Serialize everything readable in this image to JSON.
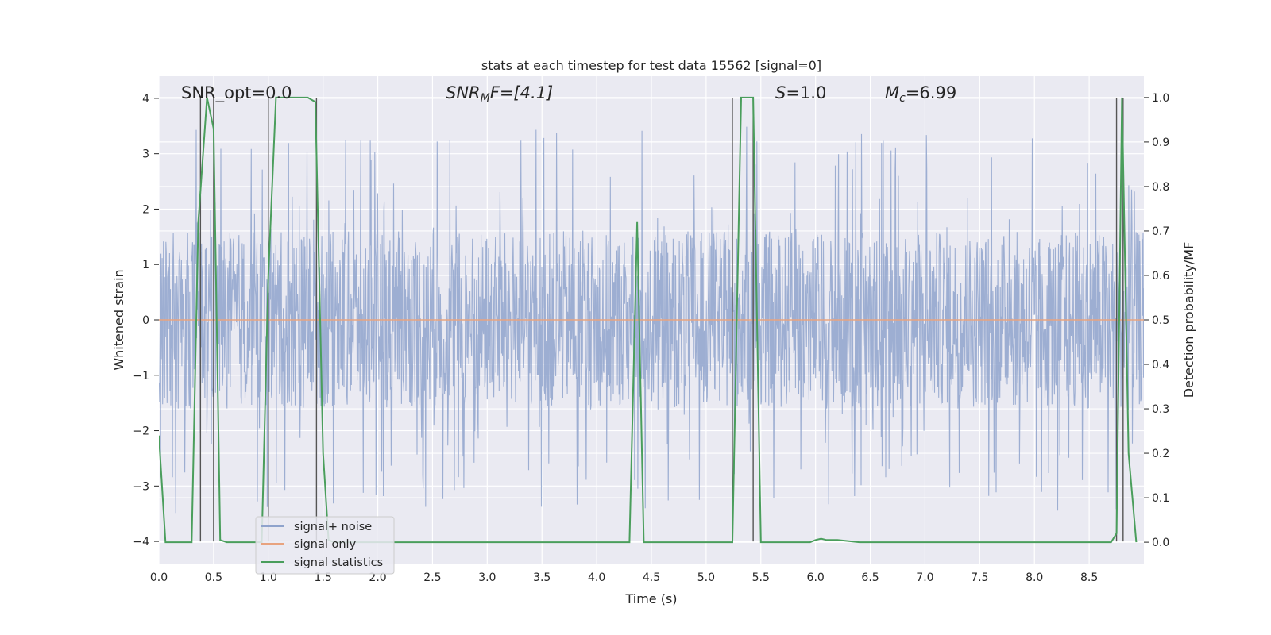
{
  "chart_data": {
    "type": "line",
    "title": "stats at each timestep for test data 15562 [signal=0]",
    "xlabel": "Time (s)",
    "ylabel": "Whitened strain",
    "ylabel_right": "Detection probability/MF",
    "xlim": [
      0.0,
      9.0
    ],
    "ylim": [
      -4.4,
      4.4
    ],
    "ylim_right": [
      -0.048,
      1.048
    ],
    "x_ticks": [
      "0.0",
      "0.5",
      "1.0",
      "1.5",
      "2.0",
      "2.5",
      "3.0",
      "3.5",
      "4.0",
      "4.5",
      "5.0",
      "5.5",
      "6.0",
      "6.5",
      "7.0",
      "7.5",
      "8.0",
      "8.5"
    ],
    "y_ticks": [
      "4",
      "3",
      "2",
      "1",
      "0",
      "−1",
      "−2",
      "−3",
      "−4"
    ],
    "y_ticks_right": [
      "1.0",
      "0.9",
      "0.8",
      "0.7",
      "0.6",
      "0.5",
      "0.4",
      "0.3",
      "0.2",
      "0.1",
      "0.0"
    ],
    "grid": true,
    "legend_position": "lower-left",
    "annotations": {
      "snr_opt": "SNR_opt=0.0",
      "snr_mf_base": "SNR",
      "snr_mf_sub": "M",
      "snr_mf_rest": "F=[4.1]",
      "s_var": "S",
      "s_val": "=1.0",
      "mc_var": "M",
      "mc_sub": "c",
      "mc_val": "=6.99"
    },
    "series": [
      {
        "name": "signal+ noise",
        "axis": "left",
        "color": "#8fa3cc",
        "description": "whitened noise trace, approx. uniform band between -1.6 and 1.6 with spikes to about +/-3.5",
        "band": [
          -1.6,
          1.6
        ],
        "peak_abs": 3.5
      },
      {
        "name": "signal only",
        "axis": "left",
        "color": "#e8a37f",
        "values_const": 0.0
      },
      {
        "name": "signal statistics",
        "axis": "right",
        "color": "#4a9e5c",
        "x": [
          0.0,
          0.06,
          0.16,
          0.3,
          0.36,
          0.44,
          0.5,
          0.56,
          0.62,
          0.7,
          0.94,
          1.0,
          1.07,
          1.1,
          1.36,
          1.43,
          1.5,
          1.55,
          1.6,
          1.7,
          4.3,
          4.37,
          4.43,
          4.5,
          5.0,
          5.24,
          5.32,
          5.43,
          5.5,
          5.6,
          5.95,
          6.0,
          6.05,
          6.1,
          6.2,
          6.4,
          8.7,
          8.75,
          8.8,
          8.86,
          8.93
        ],
        "values": [
          0.24,
          0.0,
          0.0,
          0.0,
          0.72,
          1.0,
          0.93,
          0.005,
          0.0,
          0.0,
          0.0,
          0.6,
          1.0,
          1.0,
          1.0,
          0.99,
          0.2,
          0.005,
          0.0,
          0.0,
          0.0,
          0.72,
          0.0,
          0.0,
          0.0,
          0.0,
          1.0,
          1.0,
          0.0,
          0.0,
          0.0,
          0.005,
          0.008,
          0.005,
          0.005,
          0.0,
          0.0,
          0.02,
          1.0,
          0.2,
          0.0
        ]
      }
    ],
    "event_markers_x": [
      0.38,
      0.5,
      1.0,
      1.44,
      5.24,
      5.43,
      8.75,
      8.81
    ]
  },
  "legend": {
    "items": [
      "signal+ noise",
      "signal only",
      "signal statistics"
    ]
  }
}
